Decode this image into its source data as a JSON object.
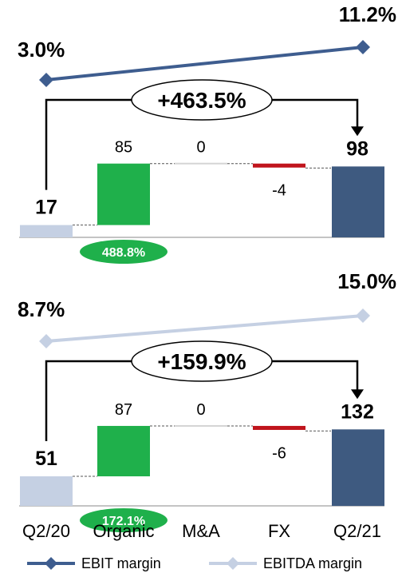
{
  "categories": [
    "Q2/20",
    "Organic",
    "M&A",
    "FX",
    "Q2/21"
  ],
  "legend": [
    {
      "name": "EBIT margin",
      "color": "#3e5d8f",
      "marker": "diamond"
    },
    {
      "name": "EBITDA margin",
      "color": "#c5d0e3",
      "marker": "diamond"
    }
  ],
  "colors": {
    "start_bar": "#c5d0e3",
    "increase": "#1fb04b",
    "decrease": "#c0141c",
    "end_bar": "#3e5a80",
    "neutral": "#d4d4d4",
    "pill": "#1fb04b",
    "bracket": "#000000"
  },
  "chart_data": [
    {
      "type": "bar",
      "subtype": "waterfall",
      "categories": [
        "Q2/20",
        "Organic",
        "M&A",
        "FX",
        "Q2/21"
      ],
      "values": [
        17,
        85,
        0,
        -4,
        98
      ],
      "value_labels": [
        "17",
        "85",
        "0",
        "-4",
        "98"
      ],
      "change_label": "+463.5%",
      "organic_growth_label": "488.8%",
      "margin_series": {
        "name": "EBIT margin",
        "start": 3.0,
        "end": 11.2,
        "start_label": "3.0%",
        "end_label": "11.2%"
      }
    },
    {
      "type": "bar",
      "subtype": "waterfall",
      "categories": [
        "Q2/20",
        "Organic",
        "M&A",
        "FX",
        "Q2/21"
      ],
      "values": [
        51,
        87,
        0,
        -6,
        132
      ],
      "value_labels": [
        "51",
        "87",
        "0",
        "-6",
        "132"
      ],
      "change_label": "+159.9%",
      "organic_growth_label": "172.1%",
      "margin_series": {
        "name": "EBITDA margin",
        "start": 8.7,
        "end": 15.0,
        "start_label": "8.7%",
        "end_label": "15.0%"
      }
    }
  ]
}
